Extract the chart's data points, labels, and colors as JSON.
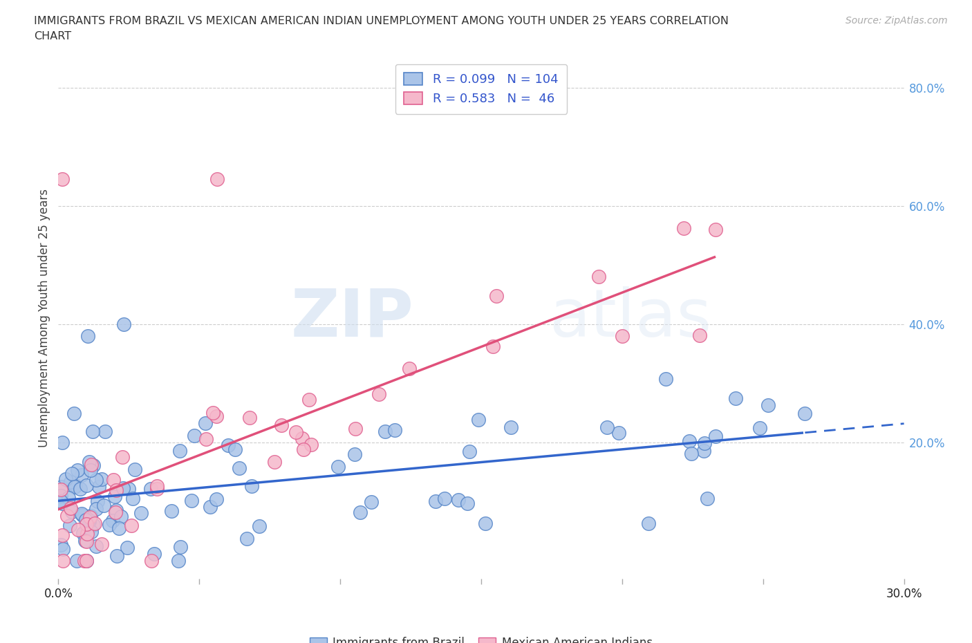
{
  "title_line1": "IMMIGRANTS FROM BRAZIL VS MEXICAN AMERICAN INDIAN UNEMPLOYMENT AMONG YOUTH UNDER 25 YEARS CORRELATION",
  "title_line2": "CHART",
  "source": "Source: ZipAtlas.com",
  "ylabel": "Unemployment Among Youth under 25 years",
  "xlim": [
    0.0,
    0.3
  ],
  "ylim": [
    -0.03,
    0.85
  ],
  "grid_color": "#c8c8c8",
  "background_color": "#ffffff",
  "watermark_zip": "ZIP",
  "watermark_atlas": "atlas",
  "series1_color": "#aac4e8",
  "series2_color": "#f5b8cb",
  "series1_edge": "#5585c8",
  "series2_edge": "#e06090",
  "series1_line_color": "#3366cc",
  "series2_line_color": "#e0507a",
  "series1_label": "Immigrants from Brazil",
  "series2_label": "Mexican American Indians",
  "series1_R": "0.099",
  "series1_N": "104",
  "series2_R": "0.583",
  "series2_N": "46",
  "legend_text_color": "#3355cc",
  "right_tick_color": "#5599dd"
}
